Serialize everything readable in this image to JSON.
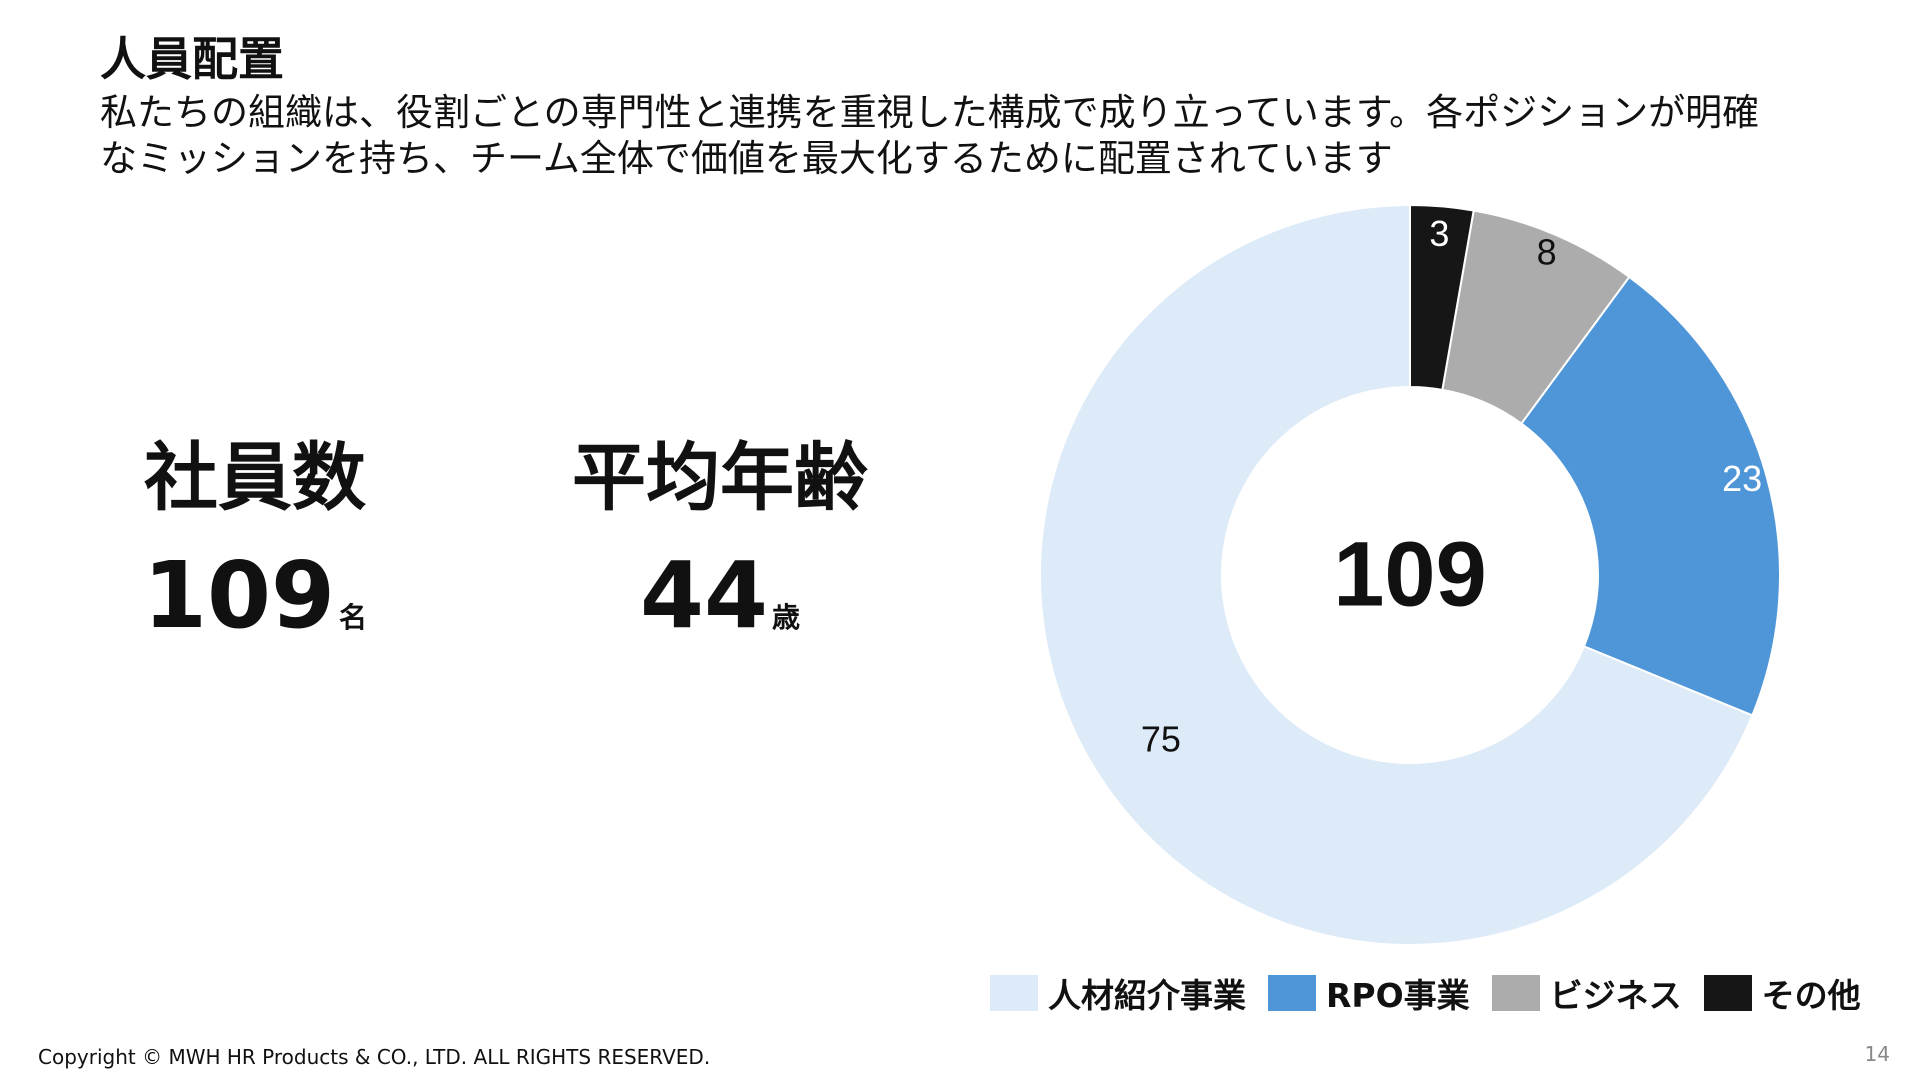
{
  "header": {
    "title": "人員配置",
    "description_line1": "私たちの組織は、役割ごとの専門性と連携を重視した構成で成り立っています。各ポジションが明確",
    "description_line2": "なミッションを持ち、チーム全体で価値を最大化するために配置されています"
  },
  "stats": {
    "employees": {
      "label": "社員数",
      "value": "109",
      "unit": "名"
    },
    "age": {
      "label": "平均年齢",
      "value": "44",
      "unit": "歳"
    }
  },
  "chart_data": {
    "type": "pie",
    "variant": "donut",
    "center_label": "109",
    "categories": [
      "人材紹介事業",
      "RPO事業",
      "ビジネス",
      "その他"
    ],
    "values": [
      75,
      23,
      8,
      3
    ],
    "data_labels": [
      "75",
      "23",
      "8",
      "3"
    ],
    "colors": [
      "#ddeaf7",
      "#4f96d8",
      "#acacac",
      "#161616"
    ],
    "label_colors": [
      "#111111",
      "#ffffff",
      "#111111",
      "#ffffff"
    ],
    "legend_position": "bottom-right"
  },
  "legend": {
    "items": [
      {
        "label": "人材紹介事業",
        "color": "#ddeaf7"
      },
      {
        "label": "RPO事業",
        "color": "#4f96d8"
      },
      {
        "label": "ビジネス",
        "color": "#acacac"
      },
      {
        "label": "その他",
        "color": "#161616"
      }
    ]
  },
  "footer": {
    "copyright": "Copyright © MWH HR Products & CO., LTD. ALL RIGHTS RESERVED.",
    "page_number": "14"
  }
}
